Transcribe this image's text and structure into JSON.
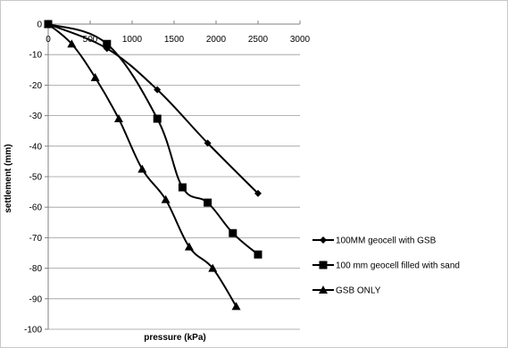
{
  "chart_data": {
    "type": "line",
    "title": "",
    "xlabel": "pressure (kPa)",
    "ylabel": "settlement (mm)",
    "xlim": [
      0,
      3000
    ],
    "ylim": [
      -100,
      0
    ],
    "xticks": [
      0,
      500,
      1000,
      1500,
      2000,
      2500,
      3000
    ],
    "yticks": [
      0,
      -10,
      -20,
      -30,
      -40,
      -50,
      -60,
      -70,
      -80,
      -90,
      -100
    ],
    "xtick_labels": [
      "0",
      "500",
      "1000",
      "1500",
      "2000",
      "2500",
      "3000"
    ],
    "ytick_labels": [
      "0",
      "-10",
      "-20",
      "-30",
      "-40",
      "-50",
      "-60",
      "-70",
      "-80",
      "-90",
      "-100"
    ],
    "grid": "horizontal",
    "legend_position": "right",
    "series": [
      {
        "name": "100MM geocell with GSB",
        "marker": "diamond",
        "color": "#000000",
        "x": [
          0,
          700,
          1300,
          1900,
          2500
        ],
        "y": [
          0,
          -8,
          -21.5,
          -39,
          -55.5
        ]
      },
      {
        "name": "100 mm geocell filled with sand",
        "marker": "square",
        "color": "#000000",
        "x": [
          0,
          700,
          1300,
          1600,
          1900,
          2200,
          2500
        ],
        "y": [
          0,
          -6.5,
          -31,
          -53.5,
          -58.5,
          -68.5,
          -75.5
        ]
      },
      {
        "name": "GSB ONLY",
        "marker": "triangle",
        "color": "#000000",
        "x": [
          0,
          280,
          560,
          840,
          1120,
          1400,
          1680,
          1960,
          2240
        ],
        "y": [
          0,
          -6.5,
          -17.5,
          -31,
          -47.5,
          -57.5,
          -73,
          -80,
          -92.5
        ]
      }
    ]
  }
}
